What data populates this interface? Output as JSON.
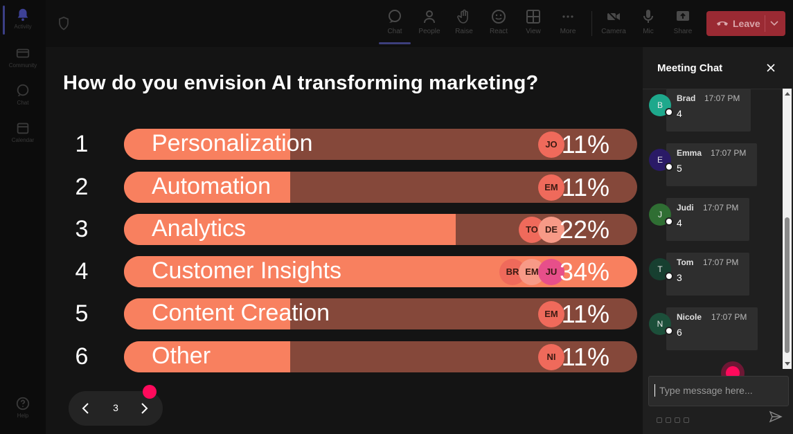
{
  "rail": {
    "items": [
      {
        "label": "Activity",
        "icon": "bell-icon",
        "active": true
      },
      {
        "label": "Community",
        "icon": "community-icon"
      },
      {
        "label": "Chat",
        "icon": "chat-icon"
      },
      {
        "label": "Calendar",
        "icon": "calendar-icon"
      }
    ],
    "help": {
      "label": "Help",
      "icon": "help-icon"
    }
  },
  "toolbar": {
    "chat": "Chat",
    "people": "People",
    "raise": "Raise",
    "react": "React",
    "view": "View",
    "more": "More",
    "camera": "Camera",
    "mic": "Mic",
    "share": "Share",
    "leave": "Leave"
  },
  "poll": {
    "question": "How do you envision AI transforming marketing?",
    "options": [
      {
        "num": "1",
        "label": "Personalization",
        "pct": "11%",
        "value": 11,
        "voters": [
          "JO"
        ]
      },
      {
        "num": "2",
        "label": "Automation",
        "pct": "11%",
        "value": 11,
        "voters": [
          "EM"
        ]
      },
      {
        "num": "3",
        "label": "Analytics",
        "pct": "22%",
        "value": 22,
        "voters": [
          "TO",
          "DE"
        ]
      },
      {
        "num": "4",
        "label": "Customer Insights",
        "pct": "34%",
        "value": 34,
        "voters": [
          "BR",
          "EM",
          "JU"
        ],
        "highlight": true
      },
      {
        "num": "5",
        "label": "Content Creation",
        "pct": "11%",
        "value": 11,
        "voters": [
          "EM"
        ]
      },
      {
        "num": "6",
        "label": "Other",
        "pct": "11%",
        "value": 11,
        "voters": [
          "NI"
        ]
      }
    ],
    "page": "3"
  },
  "chat": {
    "title": "Meeting Chat",
    "messages": [
      {
        "initial": "B",
        "name": "Brad",
        "time": "17:07 PM",
        "text": "4",
        "color": "#1ea88c"
      },
      {
        "initial": "E",
        "name": "Emma",
        "time": "17:07 PM",
        "text": "5",
        "color": "#2a1a66"
      },
      {
        "initial": "J",
        "name": "Judi",
        "time": "17:07 PM",
        "text": "4",
        "color": "#2f6e33"
      },
      {
        "initial": "T",
        "name": "Tom",
        "time": "17:07 PM",
        "text": "3",
        "color": "#173f30"
      },
      {
        "initial": "N",
        "name": "Nicole",
        "time": "17:07 PM",
        "text": "6",
        "color": "#1c4f3a"
      }
    ],
    "placeholder": "Type message here..."
  },
  "colors": {
    "bar_bg": "#85483a",
    "bar_fill": "#f8805f",
    "avatar_colors": [
      "#ef6a5b",
      "#f79a87",
      "#e74f8a"
    ],
    "leave": "#9a2a33",
    "accent": "#5b5fc7"
  }
}
